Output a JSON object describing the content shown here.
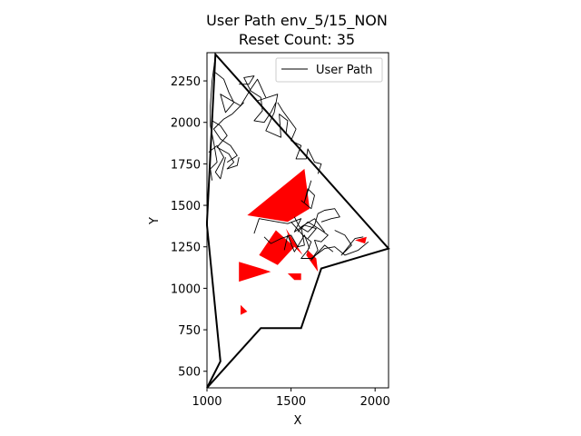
{
  "chart_data": {
    "type": "line",
    "title": "User Path env_5/15_NON",
    "subtitle": "Reset Count: 35",
    "xlabel": "X",
    "ylabel": "Y",
    "xlim": [
      1000,
      2080
    ],
    "ylim": [
      400,
      2420
    ],
    "xticks": [
      1000,
      1500,
      2000
    ],
    "yticks": [
      500,
      750,
      1000,
      1250,
      1500,
      1750,
      2000,
      2250
    ],
    "legend": {
      "position": "top-right",
      "entries": [
        "User Path"
      ]
    },
    "colors": {
      "path": "#000000",
      "obstacle": "#ff0000",
      "boundary": "#000000"
    },
    "boundary": [
      [
        1000,
        400
      ],
      [
        1320,
        760
      ],
      [
        1560,
        760
      ],
      [
        1680,
        1120
      ],
      [
        2080,
        1240
      ],
      [
        1050,
        2410
      ],
      [
        1000,
        1400
      ],
      [
        1000,
        1380
      ],
      [
        1080,
        560
      ],
      [
        1000,
        400
      ]
    ],
    "obstacles": [
      [
        [
          1240,
          1440
        ],
        [
          1580,
          1720
        ],
        [
          1610,
          1480
        ],
        [
          1480,
          1400
        ]
      ],
      [
        [
          1310,
          1200
        ],
        [
          1410,
          1350
        ],
        [
          1520,
          1250
        ],
        [
          1420,
          1140
        ]
      ],
      [
        [
          1470,
          1360
        ],
        [
          1570,
          1200
        ],
        [
          1500,
          1270
        ]
      ],
      [
        [
          1190,
          1160
        ],
        [
          1190,
          1040
        ],
        [
          1380,
          1100
        ],
        [
          1320,
          1120
        ]
      ],
      [
        [
          1600,
          1230
        ],
        [
          1650,
          1180
        ],
        [
          1660,
          1100
        ],
        [
          1590,
          1200
        ]
      ],
      [
        [
          1480,
          1090
        ],
        [
          1560,
          1090
        ],
        [
          1560,
          1050
        ],
        [
          1520,
          1050
        ]
      ],
      [
        [
          1200,
          900
        ],
        [
          1240,
          860
        ],
        [
          1200,
          840
        ]
      ],
      [
        [
          1880,
          1290
        ],
        [
          1950,
          1310
        ],
        [
          1940,
          1270
        ]
      ]
    ],
    "series": [
      {
        "name": "User Path",
        "segments": [
          [
            [
              1050,
              2400
            ],
            [
              1030,
              2250
            ],
            [
              1020,
              2100
            ],
            [
              1020,
              1980
            ],
            [
              1040,
              1880
            ],
            [
              1060,
              1760
            ],
            [
              1020,
              1720
            ],
            [
              1030,
              1650
            ]
          ],
          [
            [
              1050,
              2300
            ],
            [
              1100,
              2260
            ],
            [
              1130,
              2180
            ],
            [
              1160,
              2120
            ],
            [
              1110,
              2060
            ],
            [
              1080,
              2170
            ],
            [
              1200,
              2100
            ],
            [
              1260,
              2200
            ],
            [
              1300,
              2260
            ],
            [
              1350,
              2150
            ]
          ],
          [
            [
              1220,
              2120
            ],
            [
              1150,
              2050
            ],
            [
              1100,
              2020
            ],
            [
              1040,
              1960
            ],
            [
              1080,
              1900
            ],
            [
              1140,
              1860
            ],
            [
              1180,
              1800
            ],
            [
              1120,
              1760
            ]
          ],
          [
            [
              1030,
              2010
            ],
            [
              1080,
              1980
            ],
            [
              1120,
              1920
            ],
            [
              1060,
              1850
            ],
            [
              1130,
              1810
            ],
            [
              1160,
              1760
            ],
            [
              1120,
              1720
            ],
            [
              1180,
              1740
            ],
            [
              1190,
              1790
            ]
          ],
          [
            [
              1010,
              1820
            ],
            [
              1060,
              1860
            ],
            [
              1100,
              1790
            ],
            [
              1050,
              1700
            ],
            [
              1080,
              1660
            ],
            [
              1110,
              1790
            ]
          ],
          [
            [
              1190,
              2230
            ],
            [
              1250,
              2230
            ],
            [
              1280,
              2280
            ],
            [
              1220,
              2270
            ],
            [
              1260,
              2190
            ],
            [
              1320,
              2150
            ],
            [
              1330,
              2070
            ],
            [
              1280,
              2010
            ],
            [
              1340,
              2000
            ],
            [
              1380,
              2060
            ],
            [
              1410,
              2120
            ]
          ],
          [
            [
              1300,
              2130
            ],
            [
              1420,
              2170
            ],
            [
              1400,
              2060
            ],
            [
              1350,
              1950
            ],
            [
              1440,
              1910
            ],
            [
              1430,
              2050
            ],
            [
              1480,
              2010
            ],
            [
              1470,
              1930
            ]
          ],
          [
            [
              1420,
              2120
            ],
            [
              1450,
              2070
            ],
            [
              1530,
              1960
            ],
            [
              1500,
              1890
            ],
            [
              1560,
              1860
            ],
            [
              1530,
              1780
            ],
            [
              1590,
              1780
            ],
            [
              1600,
              1840
            ],
            [
              1640,
              1760
            ],
            [
              1680,
              1750
            ],
            [
              1660,
              1690
            ]
          ],
          [
            [
              1520,
              1430
            ],
            [
              1550,
              1370
            ],
            [
              1600,
              1340
            ],
            [
              1640,
              1380
            ],
            [
              1660,
              1450
            ],
            [
              1700,
              1470
            ],
            [
              1760,
              1480
            ],
            [
              1790,
              1430
            ],
            [
              1740,
              1420
            ],
            [
              1680,
              1400
            ]
          ],
          [
            [
              1500,
              1400
            ],
            [
              1570,
              1320
            ],
            [
              1620,
              1280
            ],
            [
              1600,
              1230
            ],
            [
              1560,
              1180
            ],
            [
              1620,
              1180
            ],
            [
              1700,
              1240
            ],
            [
              1760,
              1250
            ],
            [
              1820,
              1200
            ],
            [
              1900,
              1230
            ],
            [
              1960,
              1280
            ]
          ],
          [
            [
              1540,
              1340
            ],
            [
              1600,
              1400
            ],
            [
              1680,
              1350
            ],
            [
              1720,
              1320
            ],
            [
              1680,
              1280
            ],
            [
              1640,
              1290
            ],
            [
              1660,
              1230
            ],
            [
              1620,
              1170
            ],
            [
              1700,
              1260
            ],
            [
              1750,
              1220
            ]
          ],
          [
            [
              1280,
              1330
            ],
            [
              1310,
              1420
            ],
            [
              1420,
              1400
            ],
            [
              1480,
              1390
            ],
            [
              1560,
              1420
            ],
            [
              1520,
              1340
            ],
            [
              1580,
              1380
            ],
            [
              1650,
              1360
            ],
            [
              1600,
              1300
            ]
          ],
          [
            [
              1340,
              1310
            ],
            [
              1380,
              1270
            ],
            [
              1440,
              1300
            ],
            [
              1500,
              1320
            ],
            [
              1540,
              1250
            ],
            [
              1580,
              1260
            ],
            [
              1560,
              1370
            ],
            [
              1640,
              1420
            ],
            [
              1700,
              1340
            ]
          ],
          [
            [
              1560,
              1530
            ],
            [
              1620,
              1480
            ],
            [
              1640,
              1560
            ],
            [
              1600,
              1600
            ],
            [
              1580,
              1520
            ],
            [
              1620,
              1650
            ]
          ],
          [
            [
              1760,
              1350
            ],
            [
              1820,
              1320
            ],
            [
              1860,
              1260
            ],
            [
              1800,
              1200
            ],
            [
              1880,
              1300
            ],
            [
              1930,
              1310
            ]
          ],
          [
            [
              1460,
              1230
            ],
            [
              1480,
              1320
            ],
            [
              1520,
              1220
            ],
            [
              1580,
              1320
            ],
            [
              1610,
              1240
            ]
          ]
        ]
      }
    ]
  }
}
